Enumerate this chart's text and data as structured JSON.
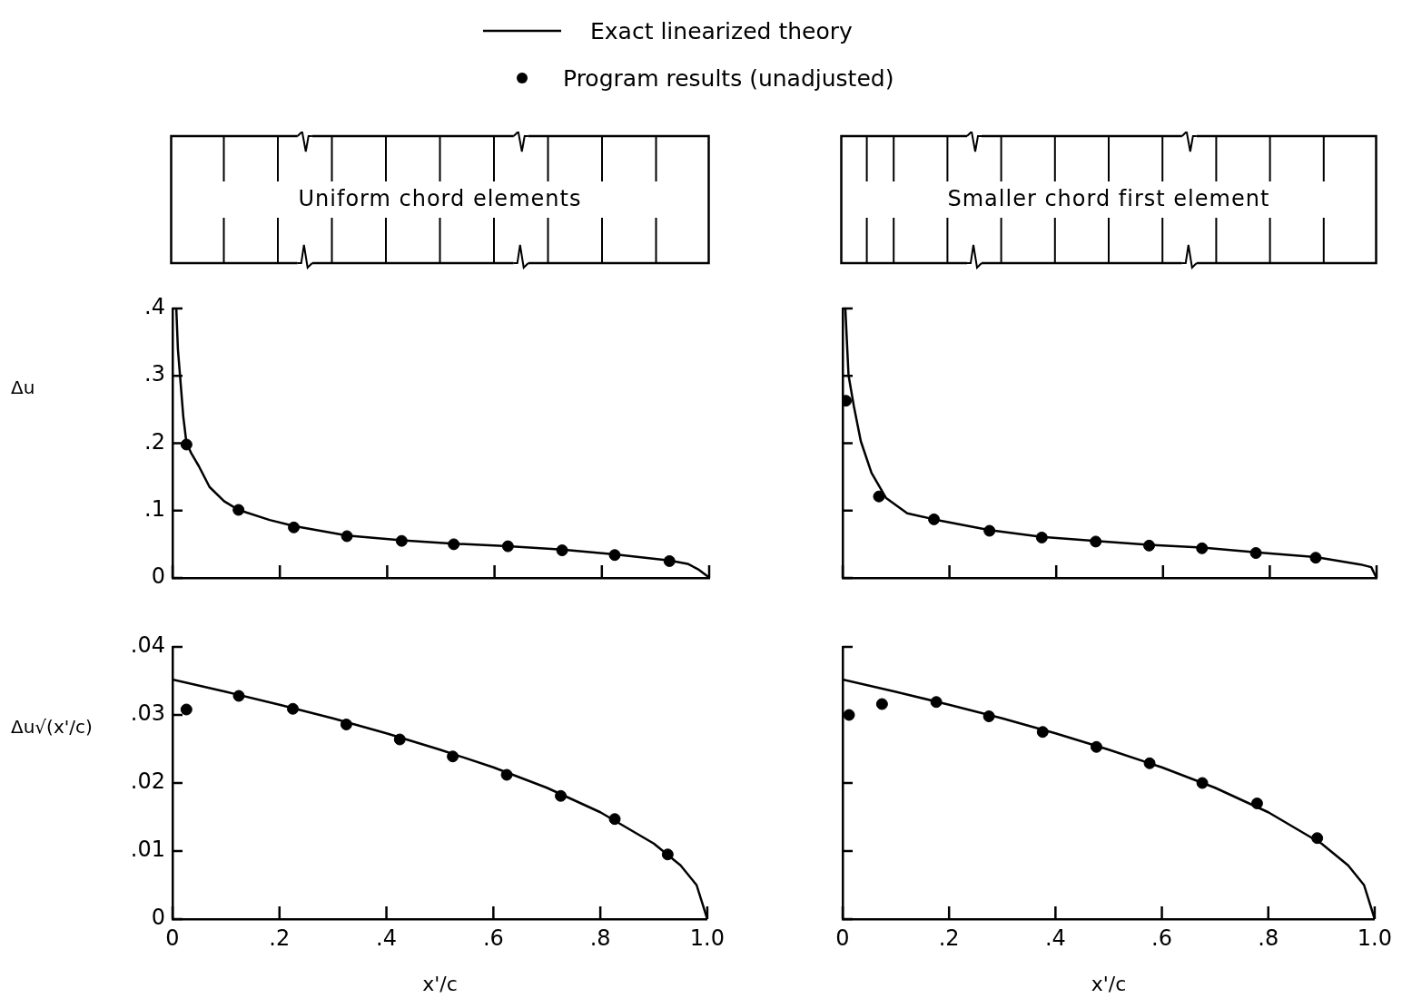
{
  "chart_data": [
    {
      "type": "line",
      "subtitle": "Uniform chord elements",
      "ylabel": "Δu",
      "legend": "top",
      "tick_labels": "y",
      "grid": false,
      "xlim": [
        0,
        1
      ],
      "xticks": [
        {
          "value": 0,
          "label": null
        },
        {
          "value": 0.2,
          "label": null
        },
        {
          "value": 0.4,
          "label": null
        },
        {
          "value": 0.6,
          "label": null
        },
        {
          "value": 0.8,
          "label": null
        },
        {
          "value": 1,
          "label": null
        }
      ],
      "ylim": [
        0,
        0.4
      ],
      "yticks": [
        {
          "value": 0,
          "label": "0"
        },
        {
          "value": 0.1,
          "label": ".1"
        },
        {
          "value": 0.2,
          "label": ".2"
        },
        {
          "value": 0.3,
          "label": ".3"
        },
        {
          "value": 0.4,
          "label": ".4"
        }
      ],
      "series": [
        {
          "name": "Exact linearized theory",
          "type": "line",
          "color": "#000000",
          "marker": "none",
          "x": [
            0.007,
            0.01,
            0.015,
            0.02,
            0.026,
            0.035,
            0.049,
            0.069,
            0.096,
            0.123,
            0.181,
            0.226,
            0.325,
            0.427,
            0.524,
            0.625,
            0.726,
            0.824,
            0.926,
            0.96,
            0.979,
            0.996,
            1.0
          ],
          "values": [
            0.4,
            0.34,
            0.29,
            0.24,
            0.2,
            0.185,
            0.166,
            0.135,
            0.114,
            0.101,
            0.086,
            0.077,
            0.063,
            0.056,
            0.051,
            0.047,
            0.042,
            0.035,
            0.026,
            0.021,
            0.013,
            0.003,
            0
          ]
        },
        {
          "name": "Program results (unadjusted)",
          "type": "scatter",
          "color": "#000000",
          "marker": "circle",
          "x": [
            0.026,
            0.123,
            0.226,
            0.325,
            0.427,
            0.524,
            0.625,
            0.726,
            0.824,
            0.926
          ],
          "values": [
            0.198,
            0.101,
            0.075,
            0.062,
            0.055,
            0.05,
            0.047,
            0.041,
            0.034,
            0.025
          ]
        }
      ]
    },
    {
      "type": "line",
      "subtitle": "Smaller chord first element",
      "tick_labels": false,
      "grid": false,
      "xlim": [
        0,
        1
      ],
      "xticks": [
        {
          "value": 0,
          "label": null
        },
        {
          "value": 0.2,
          "label": null
        },
        {
          "value": 0.4,
          "label": null
        },
        {
          "value": 0.6,
          "label": null
        },
        {
          "value": 0.8,
          "label": null
        },
        {
          "value": 1,
          "label": null
        }
      ],
      "ylim": [
        0,
        0.4
      ],
      "yticks": [
        {
          "value": 0,
          "label": null
        },
        {
          "value": 0.1,
          "label": null
        },
        {
          "value": 0.2,
          "label": null
        },
        {
          "value": 0.3,
          "label": null
        },
        {
          "value": 0.4,
          "label": null
        }
      ],
      "series": [
        {
          "type": "line",
          "color": "#000000",
          "marker": "none",
          "x": [
            0.005,
            0.011,
            0.021,
            0.034,
            0.054,
            0.081,
            0.121,
            0.171,
            0.275,
            0.373,
            0.474,
            0.574,
            0.673,
            0.774,
            0.886,
            0.97,
            0.99,
            1.0
          ],
          "values": [
            0.4,
            0.301,
            0.255,
            0.203,
            0.156,
            0.119,
            0.096,
            0.087,
            0.071,
            0.061,
            0.055,
            0.049,
            0.045,
            0.038,
            0.031,
            0.02,
            0.016,
            0
          ]
        },
        {
          "type": "scatter",
          "color": "#000000",
          "marker": "circle",
          "x": [
            0.006,
            0.068,
            0.171,
            0.275,
            0.373,
            0.474,
            0.574,
            0.673,
            0.774,
            0.886
          ],
          "values": [
            0.263,
            0.121,
            0.087,
            0.07,
            0.06,
            0.054,
            0.048,
            0.044,
            0.037,
            0.03
          ]
        }
      ]
    },
    {
      "type": "line",
      "ylabel": "Δu√(x'/c)",
      "xlabel": "x'/c",
      "grid": false,
      "xlim": [
        0,
        1
      ],
      "xticks": [
        {
          "value": 0,
          "label": "0"
        },
        {
          "value": 0.2,
          "label": ".2"
        },
        {
          "value": 0.4,
          "label": ".4"
        },
        {
          "value": 0.6,
          "label": ".6"
        },
        {
          "value": 0.8,
          "label": ".8"
        },
        {
          "value": 1,
          "label": "1.0"
        }
      ],
      "ylim": [
        0,
        0.04
      ],
      "yticks": [
        {
          "value": 0,
          "label": "0"
        },
        {
          "value": 0.01,
          "label": ".01"
        },
        {
          "value": 0.02,
          "label": ".02"
        },
        {
          "value": 0.03,
          "label": ".03"
        },
        {
          "value": 0.04,
          "label": ".04"
        }
      ],
      "series": [
        {
          "type": "line",
          "color": "#000000",
          "marker": "none",
          "x": [
            0,
            0.1,
            0.2,
            0.3,
            0.4,
            0.5,
            0.6,
            0.7,
            0.8,
            0.9,
            0.95,
            0.98,
            1.0
          ],
          "values": [
            0.0352,
            0.0334,
            0.0315,
            0.0295,
            0.0273,
            0.0249,
            0.0223,
            0.0193,
            0.0157,
            0.0111,
            0.0079,
            0.005,
            0
          ]
        },
        {
          "type": "scatter",
          "color": "#000000",
          "marker": "circle",
          "x": [
            0.026,
            0.124,
            0.225,
            0.325,
            0.425,
            0.524,
            0.625,
            0.726,
            0.827,
            0.926
          ],
          "values": [
            0.0308,
            0.0328,
            0.0309,
            0.0286,
            0.0264,
            0.0239,
            0.0212,
            0.0181,
            0.0147,
            0.0095
          ]
        }
      ]
    },
    {
      "type": "line",
      "xlabel": "x'/c",
      "tick_labels": "x",
      "grid": false,
      "xlim": [
        0,
        1
      ],
      "xticks": [
        {
          "value": 0,
          "label": "0"
        },
        {
          "value": 0.2,
          "label": ".2"
        },
        {
          "value": 0.4,
          "label": ".4"
        },
        {
          "value": 0.6,
          "label": ".6"
        },
        {
          "value": 0.8,
          "label": ".8"
        },
        {
          "value": 1,
          "label": "1.0"
        }
      ],
      "ylim": [
        0,
        0.04
      ],
      "yticks": [
        {
          "value": 0,
          "label": null
        },
        {
          "value": 0.01,
          "label": null
        },
        {
          "value": 0.02,
          "label": null
        },
        {
          "value": 0.03,
          "label": null
        },
        {
          "value": 0.04,
          "label": null
        }
      ],
      "series": [
        {
          "type": "line",
          "color": "#000000",
          "marker": "none",
          "x": [
            0,
            0.1,
            0.2,
            0.3,
            0.4,
            0.5,
            0.6,
            0.7,
            0.8,
            0.9,
            0.95,
            0.98,
            1.0
          ],
          "values": [
            0.0352,
            0.0334,
            0.0315,
            0.0295,
            0.0273,
            0.0249,
            0.0223,
            0.0193,
            0.0157,
            0.0111,
            0.0079,
            0.005,
            0
          ]
        },
        {
          "type": "scatter",
          "color": "#000000",
          "marker": "circle",
          "x": [
            0.012,
            0.074,
            0.176,
            0.275,
            0.376,
            0.477,
            0.577,
            0.676,
            0.779,
            0.892
          ],
          "values": [
            0.03,
            0.0316,
            0.0319,
            0.0298,
            0.0275,
            0.0253,
            0.0229,
            0.02,
            0.017,
            0.0119
          ]
        }
      ]
    }
  ]
}
